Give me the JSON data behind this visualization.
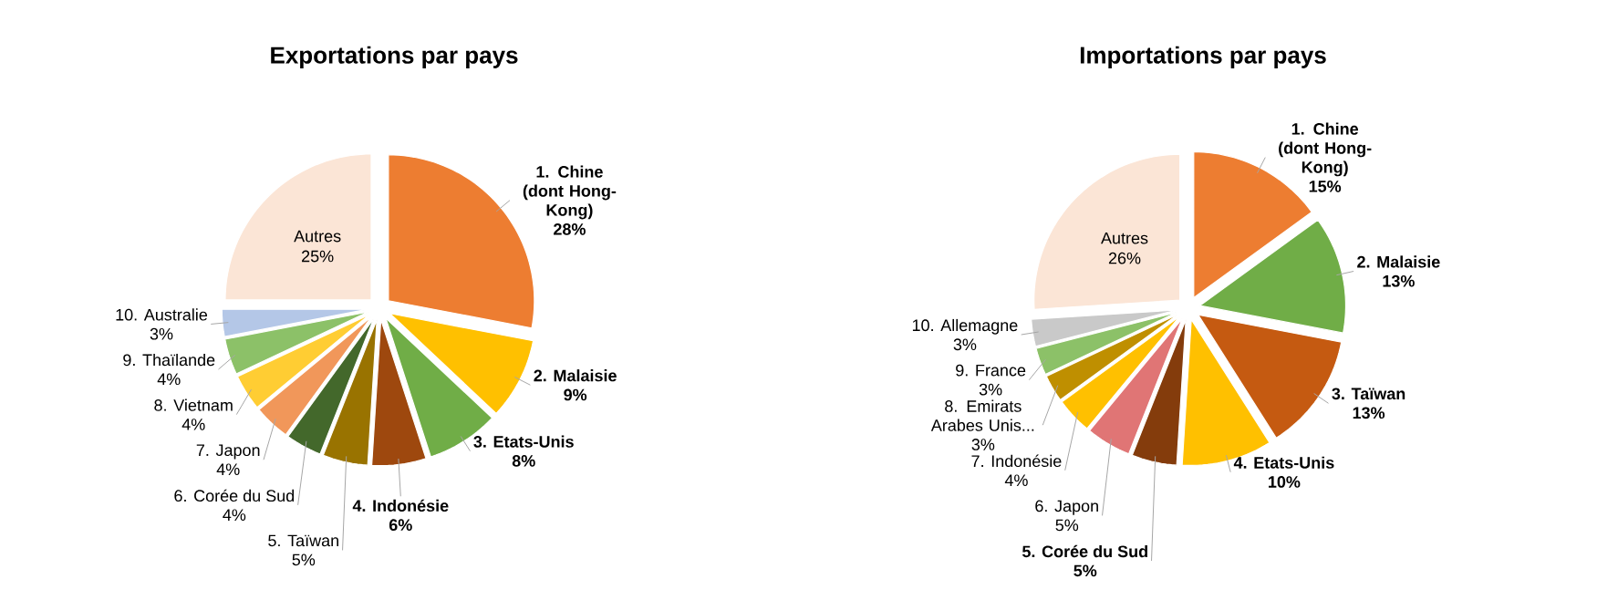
{
  "chart_data": [
    {
      "type": "pie",
      "title": "Exportations par pays",
      "categories": [
        "**1. Chine (dont Hong-Kong)**",
        "**2. Malaisie**",
        "**3. Etats-Unis**",
        "**4. Indonésie**",
        "5. Taïwan",
        "6. Corée du Sud",
        "7. Japon",
        "8. Vietnam",
        "9. Thaïlande",
        "10. Australie",
        "Autres"
      ],
      "values": [
        28,
        9,
        8,
        6,
        5,
        4,
        4,
        4,
        4,
        3,
        25
      ],
      "value_labels": [
        "**28%**",
        "**9%**",
        "**8%**",
        "**6%**",
        "5%",
        "4%",
        "4%",
        "4%",
        "4%",
        "3%",
        "25%"
      ],
      "colors": [
        "#ed7d31",
        "#ffc000",
        "#70ad47",
        "#9e480e",
        "#997300",
        "#43682b",
        "#f1975a",
        "#ffcd33",
        "#8cc168",
        "#b4c7e7",
        "#fbe5d6"
      ]
    },
    {
      "type": "pie",
      "title": "Importations par pays",
      "categories": [
        "**1. Chine (dont Hong-Kong)**",
        "**2. Malaisie**",
        "**3. Taïwan**",
        "**4. Etats-Unis**",
        "**5. Corée du Sud**",
        "6. Japon",
        "7. Indonésie",
        "8. Emirats Arabes Unis...",
        "9. France",
        "10. Allemagne",
        "Autres"
      ],
      "values": [
        15,
        13,
        13,
        10,
        5,
        5,
        4,
        3,
        3,
        3,
        26
      ],
      "value_labels": [
        "**15%**",
        "**13%**",
        "**13%**",
        "**10%**",
        "**5%**",
        "5%",
        "4%",
        "3%",
        "3%",
        "3%",
        "26%"
      ],
      "colors": [
        "#ed7d31",
        "#70ad47",
        "#c55a11",
        "#ffc000",
        "#843c0c",
        "#e07575",
        "#ffc000",
        "#bf8f00",
        "#8cc168",
        "#c9c9c9",
        "#fbe5d6"
      ]
    }
  ]
}
